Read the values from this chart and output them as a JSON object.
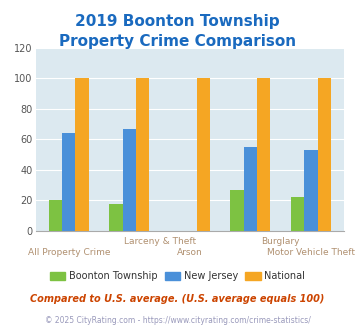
{
  "title_line1": "2019 Boonton Township",
  "title_line2": "Property Crime Comparison",
  "title_color": "#1a6abf",
  "categories": [
    "All Property Crime",
    "Larceny & Theft",
    "Arson",
    "Burglary",
    "Motor Vehicle Theft"
  ],
  "boonton": [
    20,
    18,
    0,
    27,
    22
  ],
  "new_jersey": [
    64,
    67,
    0,
    55,
    53
  ],
  "national": [
    100,
    100,
    100,
    100,
    100
  ],
  "bar_colors": {
    "boonton": "#7dc242",
    "new_jersey": "#4a90d9",
    "national": "#f5a623"
  },
  "legend_labels": [
    "Boonton Township",
    "New Jersey",
    "National"
  ],
  "footnote1": "Compared to U.S. average. (U.S. average equals 100)",
  "footnote2": "© 2025 CityRating.com - https://www.cityrating.com/crime-statistics/",
  "ylim": [
    0,
    120
  ],
  "yticks": [
    0,
    20,
    40,
    60,
    80,
    100,
    120
  ],
  "plot_bg_color": "#dce9f0",
  "upper_label_color": "#b09070",
  "lower_label_color": "#b09070",
  "footnote1_color": "#cc4400",
  "footnote2_color": "#9999bb"
}
